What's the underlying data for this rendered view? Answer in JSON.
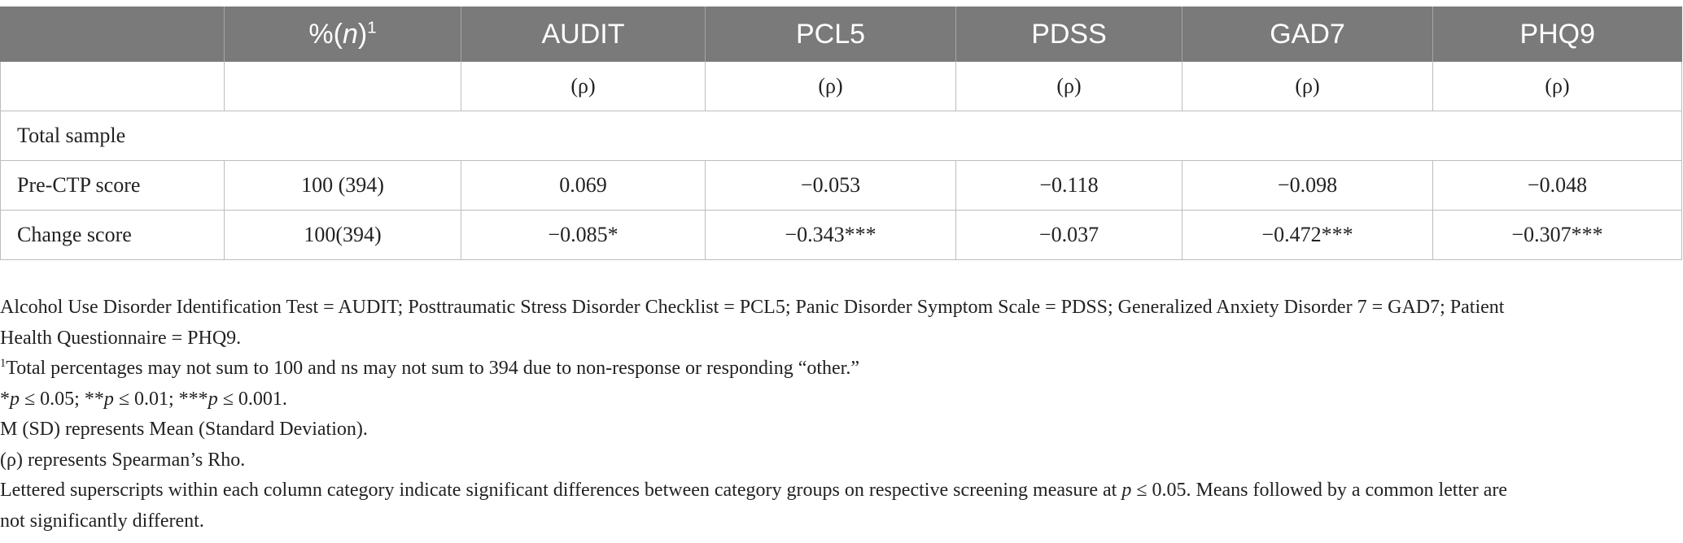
{
  "table": {
    "header": {
      "col1_prefix": "%(",
      "col1_n": "n",
      "col1_suffix": ")",
      "col1_sup": "1",
      "cols": [
        "AUDIT",
        "PCL5",
        "PDSS",
        "GAD7",
        "PHQ9"
      ]
    },
    "subheader": [
      "(ρ)",
      "(ρ)",
      "(ρ)",
      "(ρ)",
      "(ρ)"
    ],
    "section_label": "Total sample",
    "rows": [
      {
        "label": "Pre-CTP score",
        "pct": "100 (394)",
        "values": [
          "0.069",
          "−0.053",
          "−0.118",
          "−0.098",
          "−0.048"
        ]
      },
      {
        "label": "Change score",
        "pct": "100(394)",
        "values": [
          "−0.085*",
          "−0.343***",
          "−0.037",
          "−0.472***",
          "−0.307***"
        ]
      }
    ]
  },
  "notes": {
    "abbrev_line1": "Alcohol Use Disorder Identification Test = AUDIT; Posttraumatic Stress Disorder Checklist = PCL5; Panic Disorder Symptom Scale = PDSS; Generalized Anxiety Disorder 7 = GAD7; Patient",
    "abbrev_line2": "Health Questionnaire = PHQ9.",
    "footnote_sup": "1",
    "footnote_text": "Total percentages may not sum to 100 and ns may not sum to 394 due to non-response or responding “other.”",
    "sig_1_pre": "*",
    "sig_1_p": "p",
    "sig_1_post": " ≤ 0.05; **",
    "sig_2_p": "p",
    "sig_2_post": " ≤ 0.01; ***",
    "sig_3_p": "p",
    "sig_3_post": " ≤ 0.001.",
    "msd": "M (SD) represents Mean (Standard Deviation).",
    "rho": "(ρ) represents Spearman’s Rho.",
    "lettered_line1_pre": "Lettered superscripts within each column category indicate significant differences between category groups on respective screening measure at ",
    "lettered_line1_p": "p",
    "lettered_line1_post": " ≤ 0.05. Means followed by a common letter are",
    "lettered_line2": "not significantly different."
  }
}
